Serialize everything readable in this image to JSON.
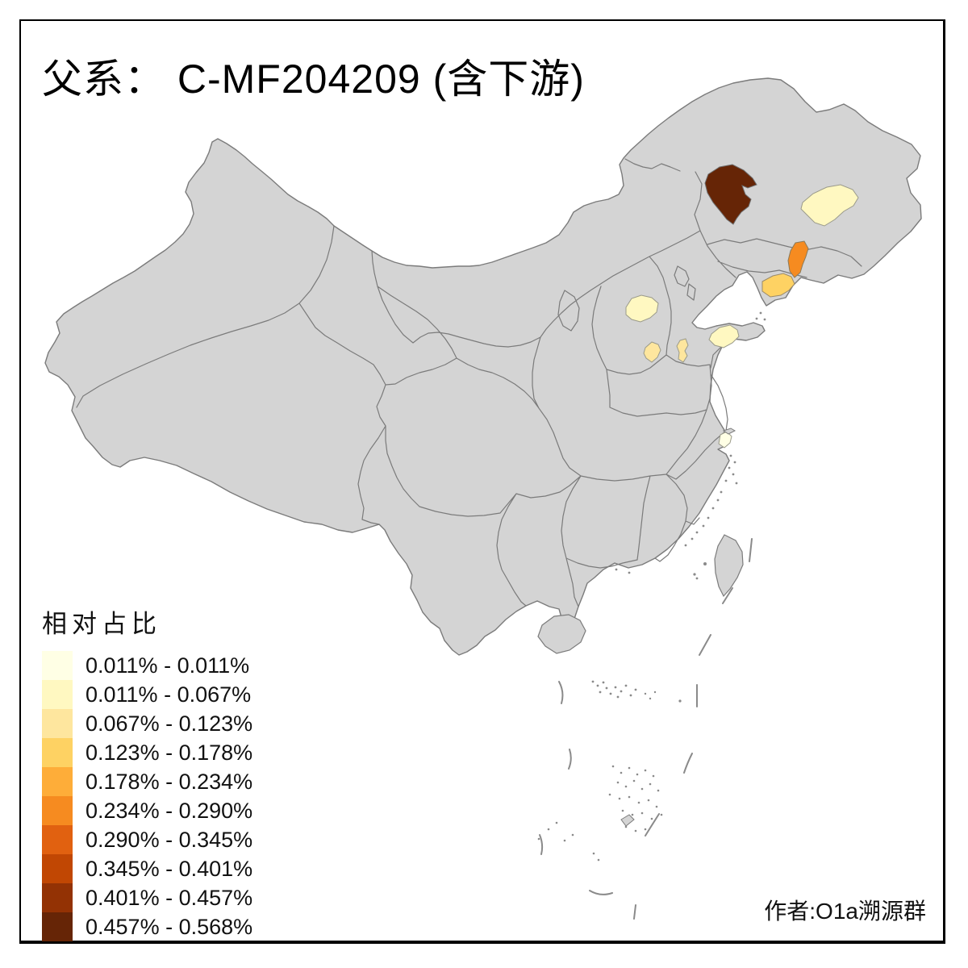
{
  "title": {
    "text": "父系： C-MF204209 (含下游)"
  },
  "legend": {
    "title": "相对占比",
    "classes": [
      {
        "label": "0.011% - 0.011%",
        "color": "#FFFFE5"
      },
      {
        "label": "0.011% - 0.067%",
        "color": "#FFF8C1"
      },
      {
        "label": "0.067% - 0.123%",
        "color": "#FEE69E"
      },
      {
        "label": "0.123% - 0.178%",
        "color": "#FED263"
      },
      {
        "label": "0.178% - 0.234%",
        "color": "#FEAD39"
      },
      {
        "label": "0.234% - 0.290%",
        "color": "#F68B20"
      },
      {
        "label": "0.290% - 0.345%",
        "color": "#E16110"
      },
      {
        "label": "0.345% - 0.401%",
        "color": "#C14703"
      },
      {
        "label": "0.401% - 0.457%",
        "color": "#933204"
      },
      {
        "label": "0.457% - 0.568%",
        "color": "#662506"
      }
    ]
  },
  "author": "作者:O1a溯源群",
  "map": {
    "base_fill": "#D4D4D4",
    "border_color": "#7B7B7B",
    "background": "#FFFFFF",
    "regions": [
      {
        "id": "northeast-dark",
        "class_index": 10,
        "range": "0.457% - 0.568%",
        "color": "#662506"
      },
      {
        "id": "heilongjiang-pale",
        "class_index": 2,
        "range": "0.011% - 0.067%",
        "color": "#FFF8C1"
      },
      {
        "id": "liaoning-east",
        "class_index": 6,
        "range": "0.234% - 0.290%",
        "color": "#F68B20"
      },
      {
        "id": "liaoning-south",
        "class_index": 4,
        "range": "0.123% - 0.178%",
        "color": "#FED263"
      },
      {
        "id": "shanxi-central",
        "class_index": 2,
        "range": "0.011% - 0.067%",
        "color": "#FFF8C1"
      },
      {
        "id": "shanxi-south",
        "class_index": 3,
        "range": "0.067% - 0.123%",
        "color": "#FEE69E"
      },
      {
        "id": "henan-north",
        "class_index": 3,
        "range": "0.067% - 0.123%",
        "color": "#FEE69E"
      },
      {
        "id": "shandong-east",
        "class_index": 2,
        "range": "0.011% - 0.067%",
        "color": "#FFF8C1"
      },
      {
        "id": "shanghai-area",
        "class_index": 1,
        "range": "0.011% - 0.011%",
        "color": "#FFFFE5"
      }
    ]
  }
}
